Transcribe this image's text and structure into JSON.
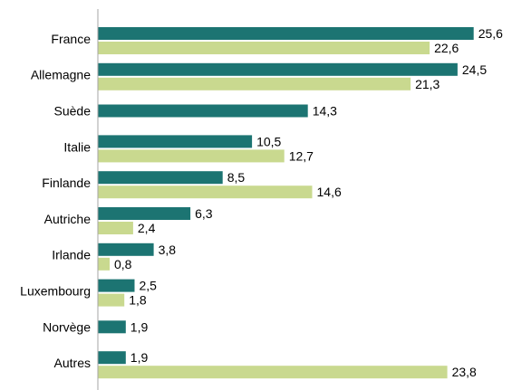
{
  "chart_data": {
    "type": "bar",
    "orientation": "horizontal",
    "categories": [
      "France",
      "Allemagne",
      "Suède",
      "Italie",
      "Finlande",
      "Autriche",
      "Irlande",
      "Luxembourg",
      "Norvège",
      "Autres"
    ],
    "series": [
      {
        "color": "#1c7472",
        "values": [
          25.6,
          24.5,
          14.3,
          10.5,
          8.5,
          6.3,
          3.8,
          2.5,
          1.9,
          1.9
        ],
        "value_labels": [
          "25,6",
          "24,5",
          "14,3",
          "10,5",
          "8,5",
          "6,3",
          "3,8",
          "2,5",
          "1,9",
          "1,9"
        ]
      },
      {
        "color": "#c9d98f",
        "values": [
          22.6,
          21.3,
          null,
          12.7,
          14.6,
          2.4,
          0.8,
          1.8,
          null,
          23.8
        ],
        "value_labels": [
          "22,6",
          "21,3",
          "",
          "12,7",
          "14,6",
          "2,4",
          "0,8",
          "1,8",
          "",
          "23,8"
        ]
      }
    ],
    "xlim": [
      0,
      30
    ],
    "grid": false,
    "legend": "none"
  }
}
